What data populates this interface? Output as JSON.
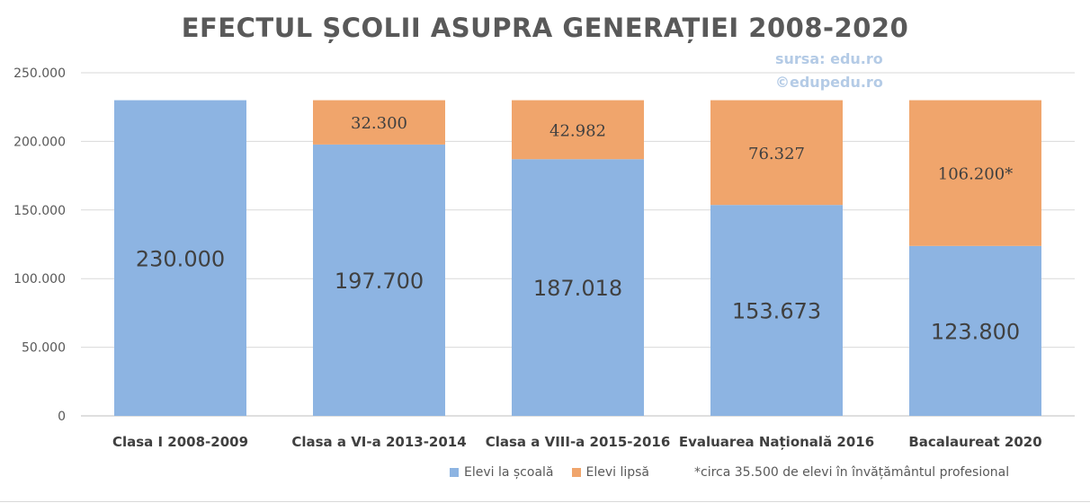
{
  "chart_data": {
    "type": "bar",
    "stacked": true,
    "title": "EFECTUL ȘCOLII ASUPRA GENERAȚIEI 2008-2020",
    "source_lines": [
      "sursa: edu.ro",
      "©edupedu.ro"
    ],
    "categories": [
      "Clasa I 2008-2009",
      "Clasa a VI-a 2013-2014",
      "Clasa a VIII-a 2015-2016",
      "Evaluarea Națională 2016",
      "Bacalaureat 2020"
    ],
    "series": [
      {
        "name": "Elevi la școală",
        "color": "#8db4e2",
        "values": [
          230000,
          197700,
          187018,
          153673,
          123800
        ],
        "labels": [
          "230.000",
          "197.700",
          "187.018",
          "153.673",
          "123.800"
        ]
      },
      {
        "name": "Elevi lipsă",
        "color": "#f0a56c",
        "values": [
          0,
          32300,
          42982,
          76327,
          106200
        ],
        "labels": [
          "",
          "32.300",
          "42.982",
          "76.327",
          "106.200*"
        ]
      }
    ],
    "ylim": [
      0,
      250000
    ],
    "yticks": [
      0,
      50000,
      100000,
      150000,
      200000,
      250000
    ],
    "ytick_labels": [
      "0",
      "50.000",
      "100.000",
      "150.000",
      "200.000",
      "250.000"
    ],
    "grid": true,
    "legend_position": "bottom",
    "footnote": "*circa 35.500 de elevi în învățământul profesional"
  }
}
